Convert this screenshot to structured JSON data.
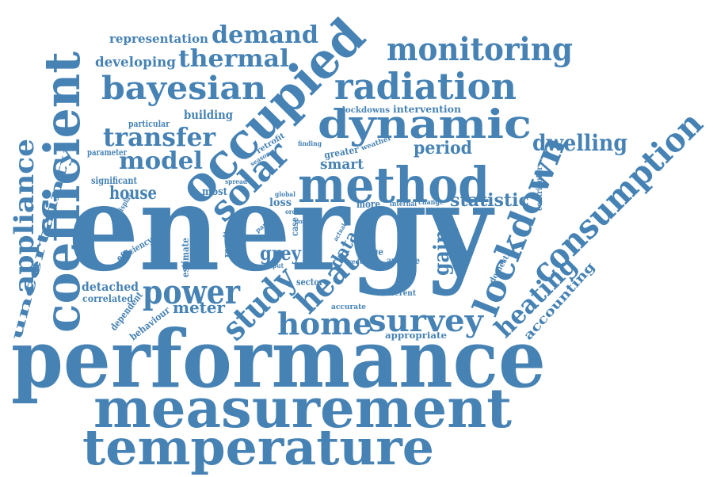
{
  "colors": {
    "word": "#4682b4",
    "background": "#ffffff"
  },
  "words": [
    "energy",
    "performance",
    "measurement",
    "temperature",
    "coefficient",
    "occupied",
    "method",
    "dynamic",
    "radiation",
    "consumption",
    "lockdown",
    "monitoring",
    "bayesian",
    "thermal",
    "demand",
    "representation",
    "developing",
    "solar",
    "transfer",
    "model",
    "appliance",
    "uncertainty",
    "study",
    "heat",
    "home",
    "survey",
    "power",
    "heating",
    "accounting",
    "dwelling",
    "period",
    "smart",
    "statistic",
    "gain",
    "data",
    "grey",
    "house",
    "meter",
    "detached",
    "correlated",
    "dependent",
    "behaviour",
    "building",
    "particular",
    "parameter",
    "significant",
    "display",
    "efficiency",
    "estimate",
    "result",
    "most",
    "spread",
    "loss",
    "global",
    "more",
    "internal",
    "change",
    "contributor",
    "domestic",
    "lockdowns",
    "intervention",
    "retrofit",
    "season",
    "finding",
    "greater",
    "weather",
    "paper",
    "order",
    "case",
    "input",
    "usage",
    "reduce",
    "average",
    "actual",
    "build",
    "time",
    "different",
    "sector",
    "accurate",
    "appropriate"
  ]
}
